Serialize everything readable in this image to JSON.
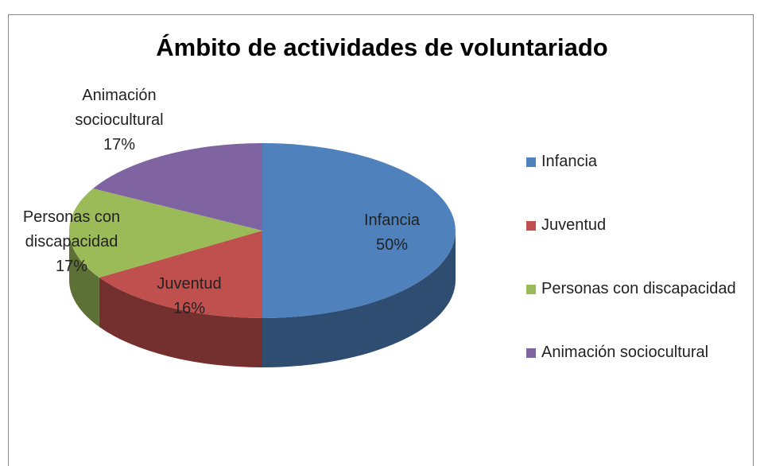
{
  "chart_data": {
    "type": "pie3d",
    "title": "Ámbito de actividades de voluntariado",
    "categories": [
      "Infancia",
      "Juventud",
      "Personas con discapacidad",
      "Animación sociocultural"
    ],
    "values": [
      50,
      16,
      17,
      17
    ],
    "value_labels": [
      "50%",
      "16%",
      "17%",
      "17%"
    ],
    "colors": [
      "#4f81bd",
      "#c0504d",
      "#9bbb59",
      "#8064a2"
    ],
    "legend": "right"
  }
}
